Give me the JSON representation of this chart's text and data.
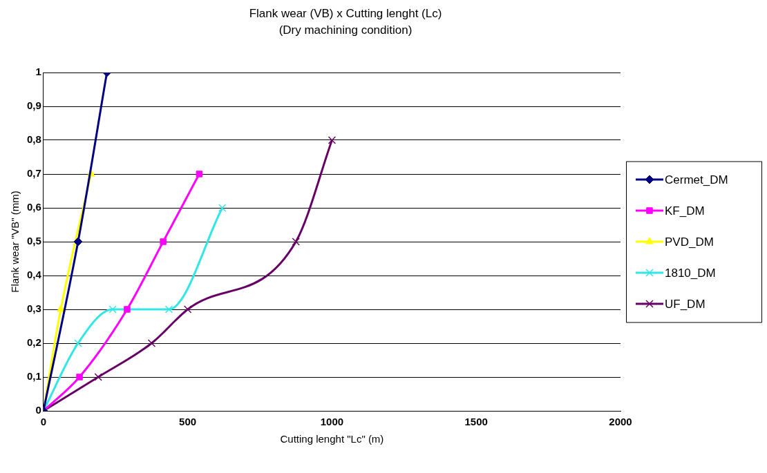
{
  "chart_data": {
    "type": "line",
    "title": "Flank wear (VB) x Cutting lenght (Lc)",
    "subtitle": "(Dry machining condition)",
    "xlabel": "Cutting lenght \"Lc\" (m)",
    "ylabel": "Flank wear \"VB\" (mm)",
    "xlim": [
      0,
      2000
    ],
    "xticks": [
      0,
      500,
      1000,
      1500,
      2000
    ],
    "ylim": [
      0,
      1
    ],
    "yticks": [
      0,
      {
        "value": 0.1,
        "label": "0,1"
      },
      {
        "value": 0.2,
        "label": "0,2"
      },
      {
        "value": 0.3,
        "label": "0,3"
      },
      {
        "value": 0.4,
        "label": "0,4"
      },
      {
        "value": 0.5,
        "label": "0,5"
      },
      {
        "value": 0.6,
        "label": "0,6"
      },
      {
        "value": 0.7,
        "label": "0,7"
      },
      {
        "value": 0.8,
        "label": "0,8"
      },
      {
        "value": 0.9,
        "label": "0,9"
      },
      1
    ],
    "grid": "y",
    "legend": "right",
    "series": [
      {
        "name": "Cermet_DM",
        "color": "#000080",
        "marker": "diamond",
        "x": [
          0,
          120,
          220
        ],
        "values": [
          0,
          0.5,
          1
        ]
      },
      {
        "name": "KF_DM",
        "color": "#ff00ff",
        "marker": "square",
        "x": [
          0,
          125,
          290,
          415,
          540
        ],
        "values": [
          0,
          0.1,
          0.3,
          0.5,
          0.7
        ]
      },
      {
        "name": "PVD_DM",
        "color": "#ffff00",
        "marker": "triangle",
        "x": [
          0,
          60,
          165
        ],
        "values": [
          0,
          0.3,
          0.7
        ]
      },
      {
        "name": "1810_DM",
        "color": "#33e6e6",
        "marker": "cross",
        "x": [
          0,
          120,
          240,
          435,
          620
        ],
        "values": [
          0,
          0.2,
          0.3,
          0.3,
          0.6
        ]
      },
      {
        "name": "UF_DM",
        "color": "#660066",
        "marker": "cross",
        "x": [
          0,
          190,
          375,
          500,
          875,
          1000
        ],
        "values": [
          0,
          0.1,
          0.2,
          0.3,
          0.5,
          0.8
        ]
      }
    ]
  }
}
